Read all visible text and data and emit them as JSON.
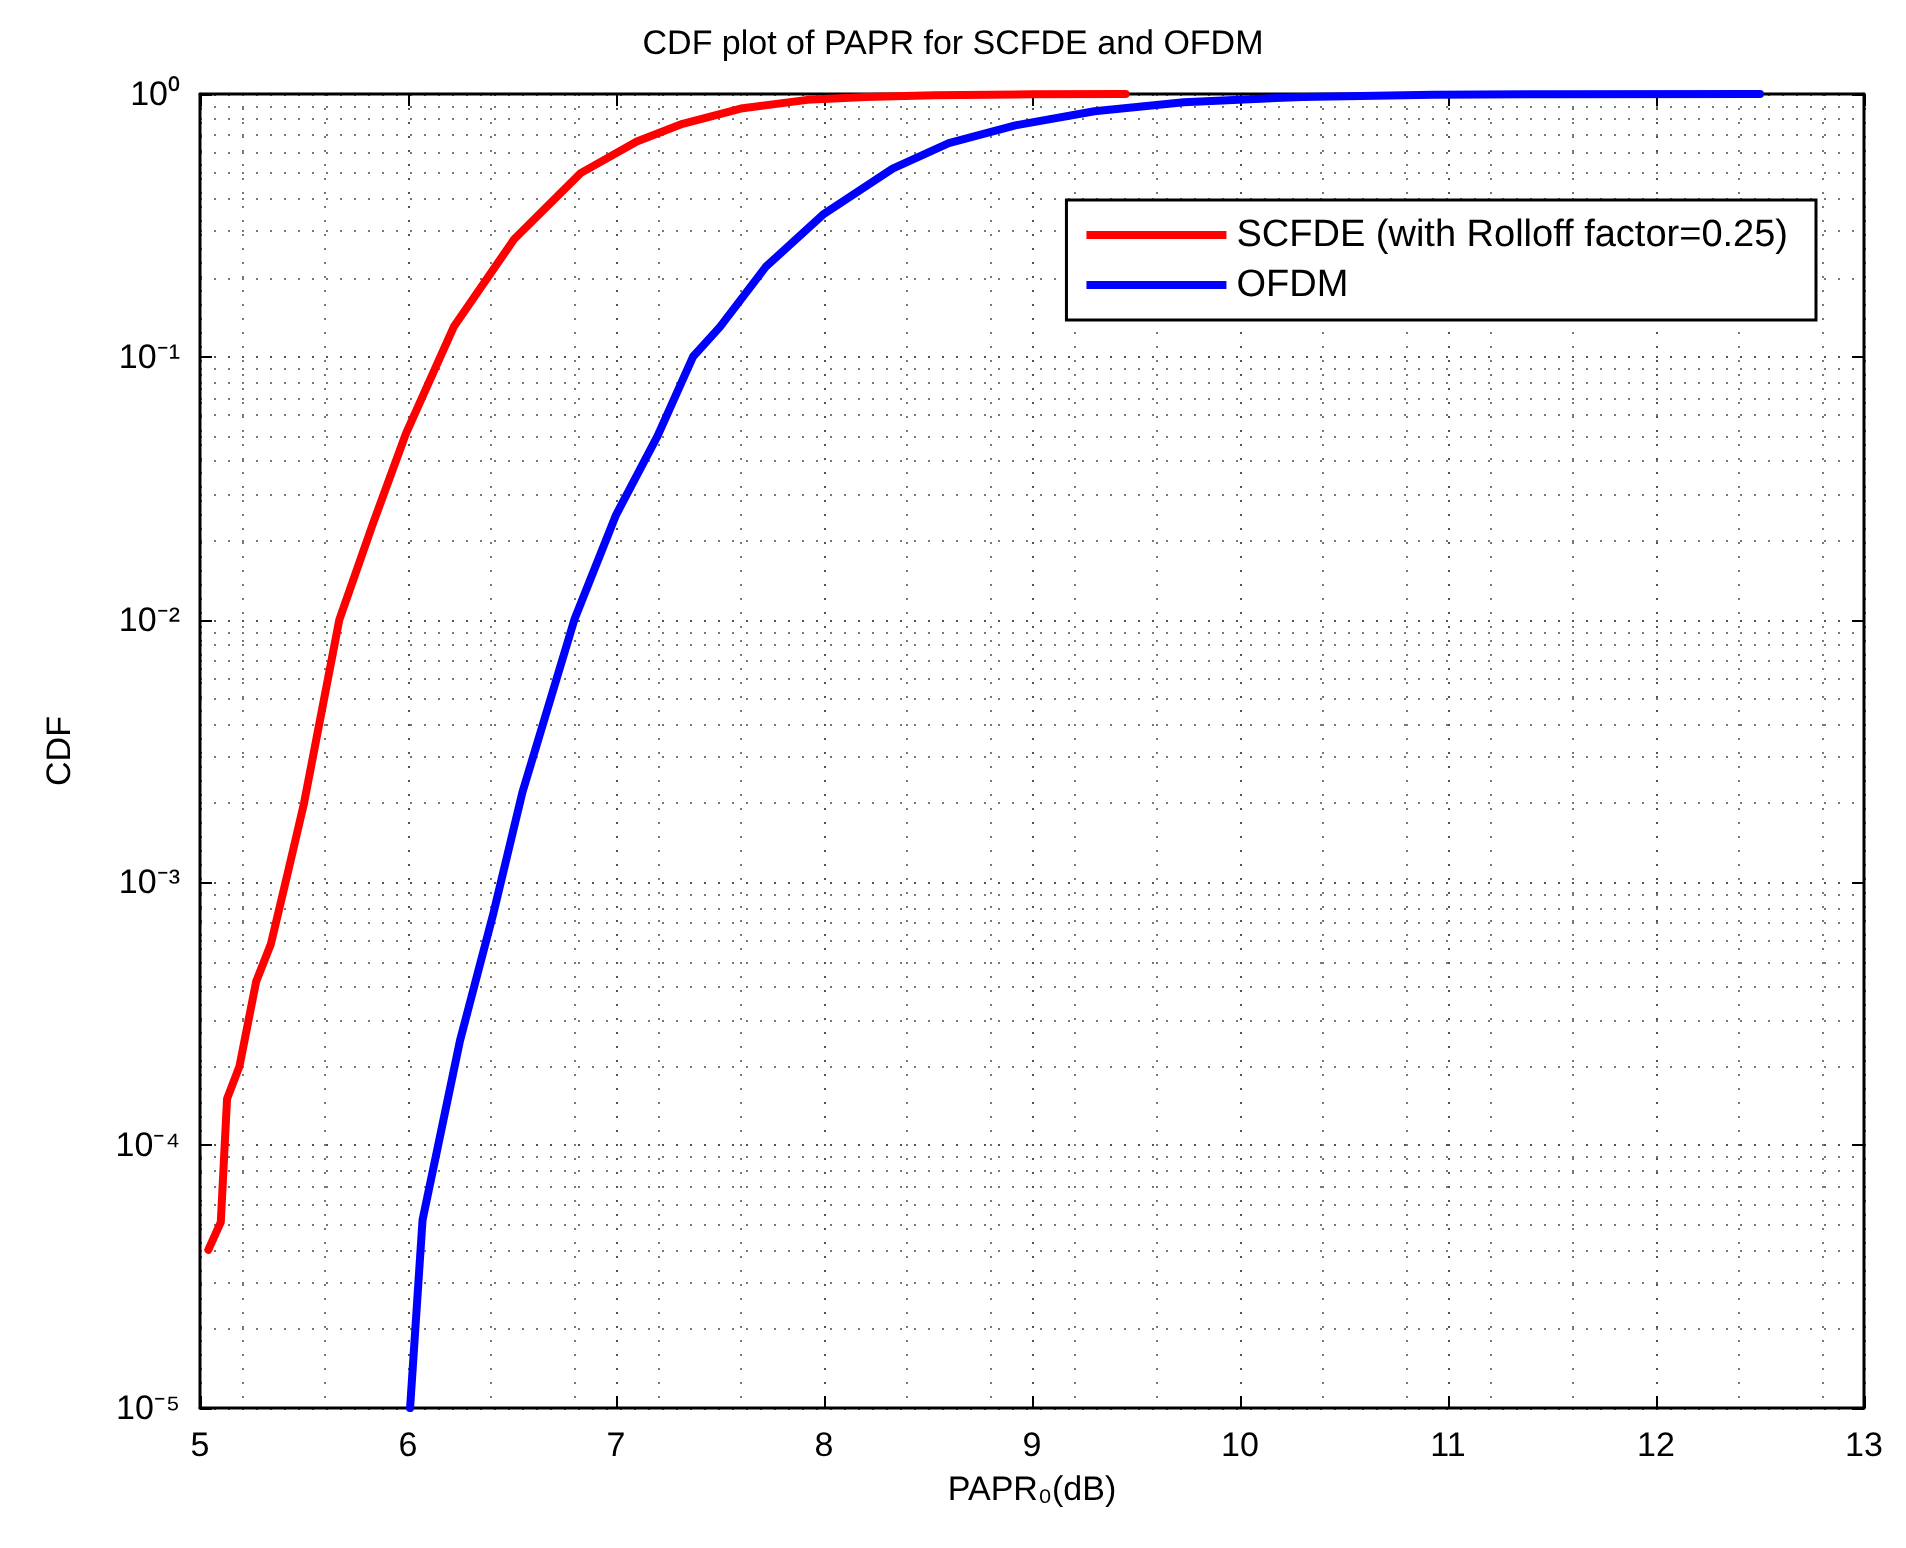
{
  "chart_data": {
    "type": "line",
    "title": "CDF plot of PAPR for SCFDE and OFDM",
    "xlabel": "PAPR₀(dB)",
    "ylabel": "CDF",
    "log": "y",
    "grid": true,
    "legend": "top right",
    "marker": "none",
    "line_style": "solid",
    "xlim": [
      5,
      13
    ],
    "xticks": [
      5,
      6,
      7,
      8,
      9,
      10,
      11,
      12,
      13
    ],
    "ylim": [
      1e-05,
      1
    ],
    "yticks": [
      {
        "value": 1e-05,
        "label": "10⁻⁵"
      },
      {
        "value": 0.0001,
        "label": "10⁻⁴"
      },
      {
        "value": 0.001,
        "label": "10⁻³"
      },
      {
        "value": 0.01,
        "label": "10⁻²"
      },
      {
        "value": 0.1,
        "label": "10⁻¹"
      },
      {
        "value": 1,
        "label": "10⁰"
      }
    ],
    "series": [
      {
        "name": "SCFDE (with Rolloff factor=0.25)",
        "color": "#ff0000",
        "x": [
          5.04,
          5.1,
          5.13,
          5.19,
          5.27,
          5.34,
          5.42,
          5.5,
          5.67,
          5.83,
          5.99,
          6.22,
          6.51,
          6.83,
          7.1,
          7.32,
          7.6,
          7.92,
          8.2,
          8.53,
          9,
          9.45
        ],
        "values": [
          4e-05,
          5.1e-05,
          0.00015,
          0.0002,
          0.00042,
          0.00058,
          0.00107,
          0.002,
          0.01,
          0.023,
          0.051,
          0.13,
          0.28,
          0.5,
          0.66,
          0.77,
          0.88,
          0.95,
          0.975,
          0.99,
          0.997,
          1
        ]
      },
      {
        "name": "OFDM",
        "color": "#0000ff",
        "x": [
          6.01,
          6.07,
          6.25,
          6.41,
          6.55,
          6.8,
          7,
          7.2,
          7.37,
          7.5,
          7.72,
          8,
          8.33,
          8.6,
          8.92,
          9.3,
          9.73,
          10.3,
          10.93,
          11.5,
          12.5
        ],
        "values": [
          1e-05,
          5.2e-05,
          0.00025,
          0.00076,
          0.0022,
          0.01,
          0.025,
          0.05,
          0.1,
          0.13,
          0.22,
          0.35,
          0.52,
          0.65,
          0.76,
          0.86,
          0.93,
          0.975,
          0.993,
          0.998,
          1
        ]
      }
    ]
  }
}
